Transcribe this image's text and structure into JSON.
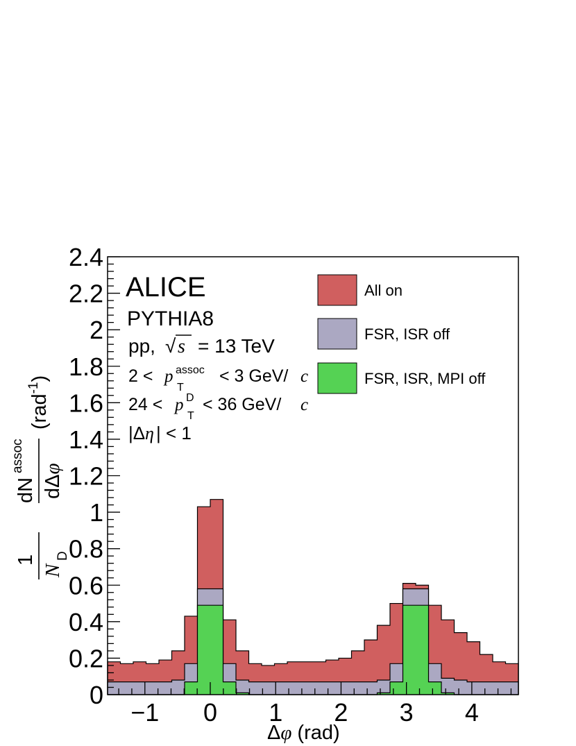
{
  "chart_data": {
    "type": "bar",
    "histtype": "stacked-overlay-step",
    "experiment": "ALICE",
    "generator": "PYTHIA8",
    "xlim": [
      -1.5708,
      4.7124
    ],
    "ylim": [
      0,
      2.4
    ],
    "x_ticks": [
      "−1",
      "0",
      "1",
      "2",
      "3",
      "4"
    ],
    "x_tick_values": [
      -1,
      0,
      1,
      2,
      3,
      4
    ],
    "y_ticks": [
      "0",
      "0.2",
      "0.4",
      "0.6",
      "0.8",
      "1",
      "1.2",
      "1.4",
      "1.6",
      "1.8",
      "2",
      "2.2",
      "2.4"
    ],
    "y_tick_values": [
      0,
      0.2,
      0.4,
      0.6,
      0.8,
      1,
      1.2,
      1.4,
      1.6,
      1.8,
      2,
      2.2,
      2.4
    ],
    "bin_count": 32,
    "series": [
      {
        "name": "All on",
        "color": "#d05f5f",
        "values": [
          0.18,
          0.17,
          0.18,
          0.17,
          0.19,
          0.24,
          0.43,
          1.03,
          1.07,
          0.41,
          0.24,
          0.17,
          0.16,
          0.17,
          0.18,
          0.18,
          0.18,
          0.19,
          0.2,
          0.24,
          0.3,
          0.38,
          0.5,
          0.61,
          0.6,
          0.49,
          0.41,
          0.34,
          0.29,
          0.22,
          0.18,
          0.17
        ]
      },
      {
        "name": "FSR, ISR off",
        "color": "#aba8c2",
        "values": [
          0.07,
          0.07,
          0.07,
          0.07,
          0.07,
          0.08,
          0.17,
          0.58,
          0.58,
          0.17,
          0.08,
          0.07,
          0.07,
          0.07,
          0.07,
          0.07,
          0.07,
          0.07,
          0.07,
          0.07,
          0.07,
          0.08,
          0.17,
          0.58,
          0.58,
          0.17,
          0.09,
          0.08,
          0.07,
          0.07,
          0.07,
          0.07
        ]
      },
      {
        "name": "FSR, ISR, MPI off",
        "color": "#55d254",
        "values": [
          0.0,
          0.0,
          0.0,
          0.0,
          0.0,
          0.0,
          0.07,
          0.49,
          0.49,
          0.07,
          0.01,
          0.0,
          0.0,
          0.0,
          0.0,
          0.0,
          0.0,
          0.0,
          0.0,
          0.0,
          0.0,
          0.01,
          0.07,
          0.49,
          0.49,
          0.07,
          0.01,
          0.0,
          0.0,
          0.0,
          0.0,
          0.0
        ]
      }
    ],
    "legend": {
      "placement": "top-right"
    }
  },
  "labels": {
    "alice": "ALICE",
    "pythia": "PYTHIA8",
    "pp": "pp,",
    "s": "s",
    "energy": "= 13 TeV",
    "cut1_lo": "2 <",
    "cut1_p": "p",
    "cut1_sup": "assoc",
    "cut1_sub": "T",
    "cut1_hi": "< 3 GeV/",
    "cut1_c": "c",
    "cut2_lo": "24 <",
    "cut2_p": "p",
    "cut2_sup": "D",
    "cut2_sub": "T",
    "cut2_hi": "< 36 GeV/",
    "cut2_c": "c",
    "eta_bar1": "|Δ",
    "eta_sym": "η",
    "eta_bar2": "| < 1",
    "xlabel_delta": "Δ",
    "xlabel_phi": "φ",
    "xlabel_unit": "(rad)",
    "ylabel_one": "1",
    "ylabel_N": "N",
    "ylabel_D": "D",
    "ylabel_dN": "dN",
    "ylabel_assoc": "assoc",
    "ylabel_dphi": "dΔ",
    "ylabel_phi": "φ",
    "ylabel_unit_open": "(rad",
    "ylabel_unit_exp": "-1",
    "ylabel_unit_close": ")"
  }
}
